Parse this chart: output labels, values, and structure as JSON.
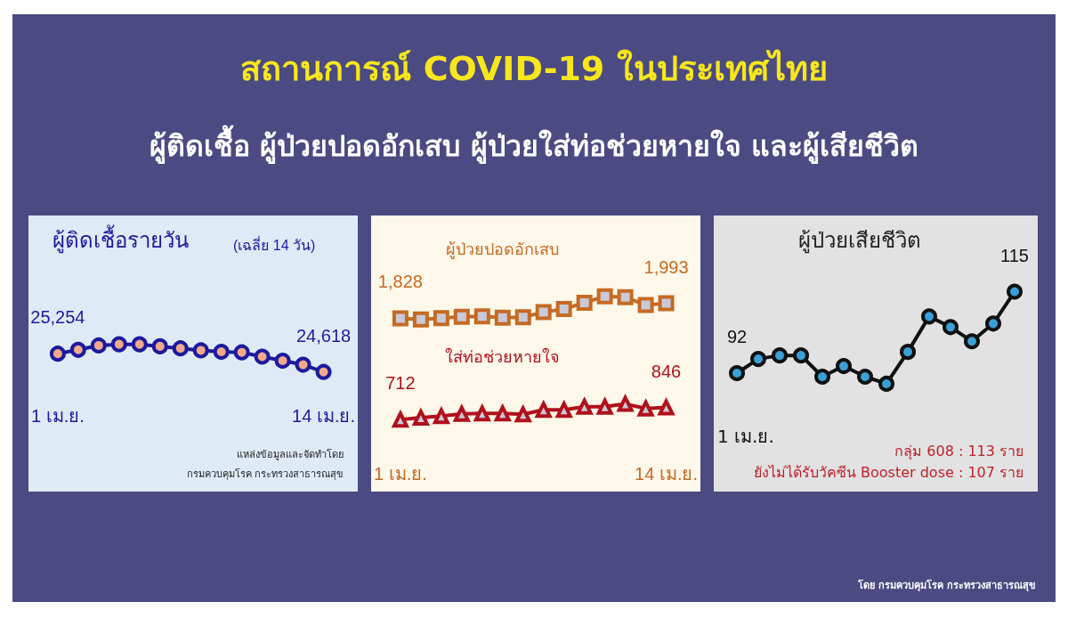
{
  "chart_data": [
    {
      "type": "other",
      "title": "สถานการณ์ COVID-19 ในประเทศไทย",
      "subtitle": "ผู้ติดเชื้อ ผู้ป่วยปอดอักเสบ ผู้ป่วยใส่ท่อช่วยหายใจ และผู้เสียชีวิต",
      "annotations": [
        "โดย กรมควบคุมโรค กระทรวงสาธารณสุข"
      ]
    },
    {
      "type": "line",
      "title": "ผู้ติดเชื้อรายวัน",
      "subtitle": "(เฉลี่ย 14 วัน)",
      "categories": [
        "1 เม.ย.",
        null,
        null,
        null,
        null,
        null,
        null,
        null,
        null,
        null,
        null,
        null,
        null,
        "14 เม.ย."
      ],
      "series": [
        {
          "color": "#1c1a9e",
          "marker": "circle",
          "values": [
            25254,
            25390,
            25540,
            25580,
            25580,
            25510,
            25440,
            25370,
            25320,
            25300,
            25150,
            25010,
            24870,
            24618
          ],
          "value_labels": [
            "25,254",
            null,
            null,
            null,
            null,
            null,
            null,
            null,
            null,
            null,
            null,
            null,
            null,
            "24,618"
          ]
        }
      ],
      "tick_labels": "x",
      "grid": false,
      "legend": false,
      "annotations": [
        "แหล่งข้อมูลและจัดทำโดย",
        "กรมควบคุมโรค กระทรวงสาธารณสุข"
      ]
    },
    {
      "type": "line",
      "categories": [
        "1 เม.ย.",
        null,
        null,
        null,
        null,
        null,
        null,
        null,
        null,
        null,
        null,
        null,
        null,
        "14 เม.ย."
      ],
      "series": [
        {
          "name": "ผู้ป่วยปอดอักเสบ",
          "color": "#c56a24",
          "marker": "square",
          "values": [
            1828,
            1815,
            1830,
            1845,
            1850,
            1835,
            1840,
            1895,
            1930,
            2000,
            2070,
            2060,
            1975,
            1993
          ],
          "value_labels": [
            "1,828",
            null,
            null,
            null,
            null,
            null,
            null,
            null,
            null,
            null,
            null,
            null,
            null,
            "1,993"
          ]
        },
        {
          "name": "ใส่ท่อช่วยหายใจ",
          "color": "#b0101c",
          "marker": "triangle",
          "values": [
            712,
            735,
            750,
            775,
            780,
            780,
            770,
            820,
            820,
            855,
            855,
            885,
            835,
            846
          ],
          "value_labels": [
            "712",
            null,
            null,
            null,
            null,
            null,
            null,
            null,
            null,
            null,
            null,
            null,
            null,
            "846"
          ]
        }
      ],
      "tick_labels": "x",
      "grid": false,
      "legend": false
    },
    {
      "type": "line",
      "title": "ผู้ป่วยเสียชีวิต",
      "categories": [
        null,
        null,
        null,
        null,
        null,
        null,
        null,
        null,
        null,
        null,
        null,
        null,
        null,
        null
      ],
      "series": [
        {
          "color": "#111111",
          "marker": "circle",
          "values": [
            92,
            96,
            97,
            97,
            91,
            94,
            91,
            89,
            98,
            108,
            105,
            101,
            106,
            115
          ],
          "value_labels": [
            "92",
            null,
            null,
            null,
            null,
            null,
            null,
            null,
            null,
            null,
            null,
            null,
            null,
            "115"
          ]
        }
      ],
      "tick_labels": "x",
      "grid": false,
      "legend": false,
      "annotations": [
        "1 เม.ย.",
        "กลุ่ม 608 : 113 ราย",
        "ยังไม่ได้รับวัคซีน Booster dose : 107 ราย"
      ]
    }
  ]
}
